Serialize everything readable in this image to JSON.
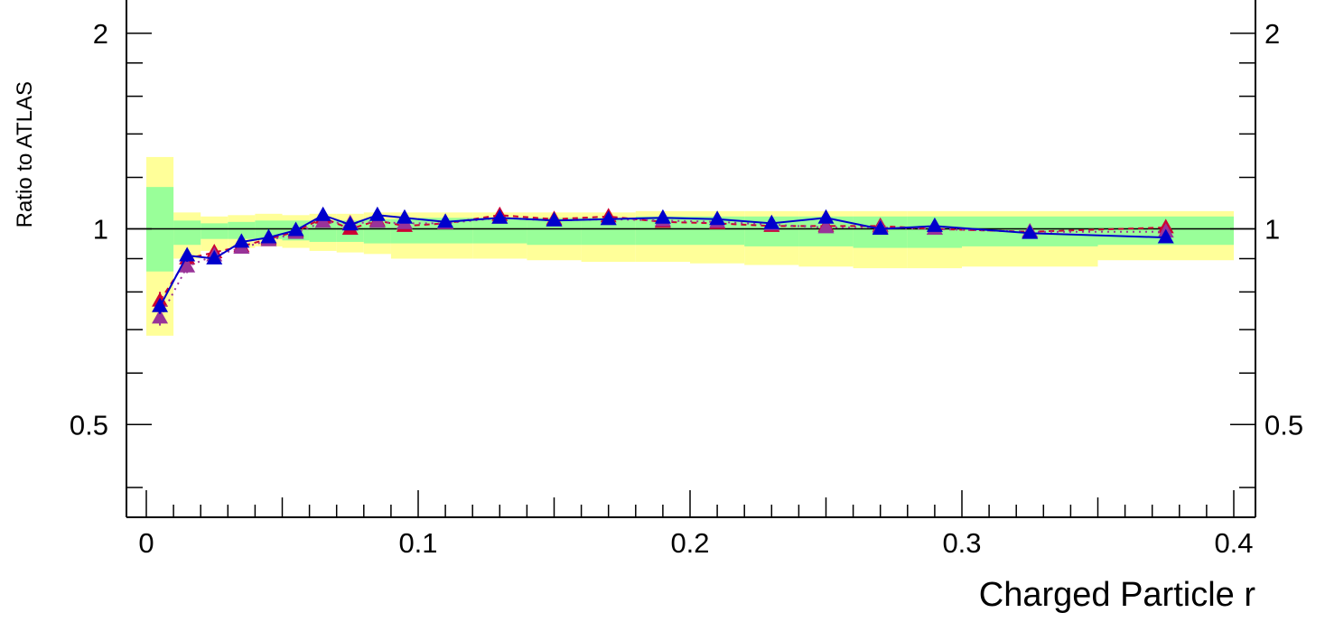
{
  "chart_data": {
    "type": "line",
    "title": "",
    "xlabel": "Charged Particle r",
    "ylabel": "Ratio to ATLAS",
    "xlim": [
      0,
      0.4
    ],
    "ylim": [
      0.36,
      2.25
    ],
    "y_scale": "log",
    "reference_line": 1,
    "x_ticks": [
      0,
      0.1,
      0.2,
      0.3,
      0.4
    ],
    "x_tick_labels": [
      "0",
      "0.1",
      "0.2",
      "0.3",
      "0.4"
    ],
    "y_ticks": [
      0.5,
      1,
      2
    ],
    "y_tick_labels": [
      "0.5",
      "1",
      "2"
    ],
    "colors": {
      "inner_band": "#99ff99",
      "outer_band": "#ffff99",
      "series_red": "#cc0033",
      "series_magenta": "#993399",
      "series_blue": "#0000cc",
      "reference": "#000000"
    },
    "bands": [
      {
        "x0": 0.0,
        "x1": 0.01,
        "inner": [
          0.86,
          1.16
        ],
        "outer": [
          0.685,
          1.29
        ]
      },
      {
        "x0": 0.01,
        "x1": 0.02,
        "inner": [
          0.945,
          1.03
        ],
        "outer": [
          0.9,
          1.06
        ]
      },
      {
        "x0": 0.02,
        "x1": 0.03,
        "inner": [
          0.965,
          1.02
        ],
        "outer": [
          0.925,
          1.045
        ]
      },
      {
        "x0": 0.03,
        "x1": 0.04,
        "inner": [
          0.965,
          1.025
        ],
        "outer": [
          0.935,
          1.05
        ]
      },
      {
        "x0": 0.04,
        "x1": 0.05,
        "inner": [
          0.965,
          1.03
        ],
        "outer": [
          0.94,
          1.055
        ]
      },
      {
        "x0": 0.05,
        "x1": 0.06,
        "inner": [
          0.96,
          1.03
        ],
        "outer": [
          0.935,
          1.05
        ]
      },
      {
        "x0": 0.06,
        "x1": 0.07,
        "inner": [
          0.955,
          1.03
        ],
        "outer": [
          0.925,
          1.055
        ]
      },
      {
        "x0": 0.07,
        "x1": 0.08,
        "inner": [
          0.955,
          1.03
        ],
        "outer": [
          0.92,
          1.055
        ]
      },
      {
        "x0": 0.08,
        "x1": 0.09,
        "inner": [
          0.95,
          1.035
        ],
        "outer": [
          0.915,
          1.06
        ]
      },
      {
        "x0": 0.09,
        "x1": 0.1,
        "inner": [
          0.95,
          1.035
        ],
        "outer": [
          0.9,
          1.06
        ]
      },
      {
        "x0": 0.1,
        "x1": 0.12,
        "inner": [
          0.95,
          1.04
        ],
        "outer": [
          0.9,
          1.06
        ]
      },
      {
        "x0": 0.12,
        "x1": 0.14,
        "inner": [
          0.95,
          1.04
        ],
        "outer": [
          0.9,
          1.06
        ]
      },
      {
        "x0": 0.14,
        "x1": 0.16,
        "inner": [
          0.945,
          1.04
        ],
        "outer": [
          0.895,
          1.06
        ]
      },
      {
        "x0": 0.16,
        "x1": 0.18,
        "inner": [
          0.945,
          1.04
        ],
        "outer": [
          0.89,
          1.06
        ]
      },
      {
        "x0": 0.18,
        "x1": 0.2,
        "inner": [
          0.945,
          1.045
        ],
        "outer": [
          0.89,
          1.065
        ]
      },
      {
        "x0": 0.2,
        "x1": 0.22,
        "inner": [
          0.945,
          1.045
        ],
        "outer": [
          0.885,
          1.065
        ]
      },
      {
        "x0": 0.22,
        "x1": 0.24,
        "inner": [
          0.94,
          1.045
        ],
        "outer": [
          0.88,
          1.065
        ]
      },
      {
        "x0": 0.24,
        "x1": 0.26,
        "inner": [
          0.94,
          1.045
        ],
        "outer": [
          0.875,
          1.065
        ]
      },
      {
        "x0": 0.26,
        "x1": 0.28,
        "inner": [
          0.935,
          1.045
        ],
        "outer": [
          0.87,
          1.065
        ]
      },
      {
        "x0": 0.28,
        "x1": 0.3,
        "inner": [
          0.935,
          1.045
        ],
        "outer": [
          0.87,
          1.065
        ]
      },
      {
        "x0": 0.3,
        "x1": 0.35,
        "inner": [
          0.94,
          1.045
        ],
        "outer": [
          0.875,
          1.065
        ]
      },
      {
        "x0": 0.35,
        "x1": 0.4,
        "inner": [
          0.945,
          1.045
        ],
        "outer": [
          0.895,
          1.065
        ]
      }
    ],
    "x": [
      0.005,
      0.015,
      0.025,
      0.035,
      0.045,
      0.055,
      0.065,
      0.075,
      0.085,
      0.095,
      0.11,
      0.13,
      0.15,
      0.17,
      0.19,
      0.21,
      0.23,
      0.25,
      0.27,
      0.29,
      0.325,
      0.375
    ],
    "series": [
      {
        "color": "#cc0033",
        "dash": "6,5",
        "values": [
          0.775,
          0.9,
          0.92,
          0.94,
          0.965,
          0.99,
          1.04,
          1.0,
          1.03,
          1.01,
          1.02,
          1.05,
          1.035,
          1.045,
          1.025,
          1.02,
          1.01,
          1.01,
          1.01,
          1.0,
          0.99,
          1.005
        ],
        "errors": [
          0.025,
          0.02,
          0.01,
          0.01,
          0.01,
          0.01,
          0.01,
          0.01,
          0.01,
          0.01,
          0.01,
          0.01,
          0.01,
          0.01,
          0.01,
          0.01,
          0.01,
          0.01,
          0.01,
          0.01,
          0.01,
          0.01
        ]
      },
      {
        "color": "#993399",
        "dash": "2,5",
        "values": [
          0.73,
          0.875,
          0.91,
          0.935,
          0.96,
          0.985,
          1.025,
          1.02,
          1.025,
          1.02,
          1.02,
          1.04,
          1.03,
          1.035,
          1.03,
          1.025,
          1.015,
          1.005,
          1.005,
          1.0,
          0.99,
          0.99
        ],
        "errors": [
          0.02,
          0.02,
          0.01,
          0.01,
          0.01,
          0.01,
          0.01,
          0.01,
          0.01,
          0.01,
          0.01,
          0.01,
          0.01,
          0.01,
          0.01,
          0.01,
          0.01,
          0.01,
          0.01,
          0.01,
          0.01,
          0.01
        ]
      },
      {
        "color": "#0000cc",
        "dash": "",
        "values": [
          0.76,
          0.91,
          0.9,
          0.955,
          0.97,
          0.995,
          1.05,
          1.015,
          1.05,
          1.04,
          1.025,
          1.04,
          1.03,
          1.035,
          1.04,
          1.035,
          1.02,
          1.04,
          1.0,
          1.01,
          0.985,
          0.97
        ],
        "errors": [
          0.02,
          0.02,
          0.01,
          0.01,
          0.01,
          0.01,
          0.01,
          0.01,
          0.01,
          0.01,
          0.01,
          0.01,
          0.01,
          0.01,
          0.01,
          0.01,
          0.01,
          0.01,
          0.01,
          0.01,
          0.01,
          0.01
        ]
      }
    ],
    "grid": false,
    "legend": "none"
  }
}
